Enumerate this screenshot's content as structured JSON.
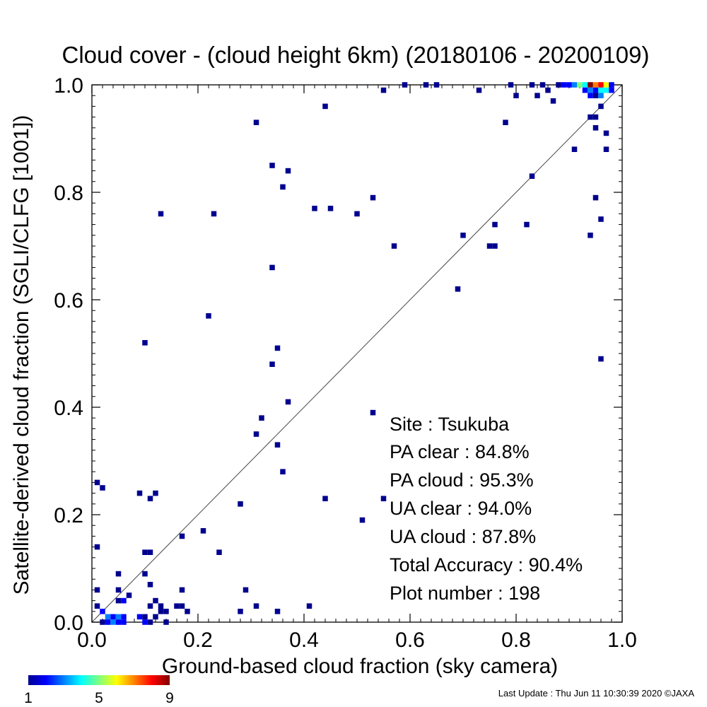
{
  "chart_data": {
    "type": "heatmap",
    "title": "Cloud cover - (cloud height 6km)  (20180106 - 20200109)",
    "xlabel": "Ground-based cloud fraction (sky camera)",
    "ylabel": "Satellite-derived cloud fraction (SGLI/CLFG [1001])",
    "xlim": [
      0.0,
      1.0
    ],
    "ylim": [
      0.0,
      1.0
    ],
    "xticks": [
      "0.0",
      "0.2",
      "0.4",
      "0.6",
      "0.8",
      "1.0"
    ],
    "yticks": [
      "0.0",
      "0.2",
      "0.4",
      "0.6",
      "0.8",
      "1.0"
    ],
    "reference_line": "1:1 diagonal",
    "grid": false,
    "colorbar": {
      "min": 1,
      "max": 9,
      "ticks": [
        "1",
        "5",
        "9"
      ],
      "placement": "bottom-left"
    },
    "cells": [
      [
        0.01,
        0.26,
        1
      ],
      [
        0.02,
        0.25,
        1
      ],
      [
        0.01,
        0.14,
        1
      ],
      [
        0.01,
        0.06,
        1
      ],
      [
        0.01,
        0.03,
        1
      ],
      [
        0.02,
        0.02,
        2
      ],
      [
        0.03,
        0.01,
        3
      ],
      [
        0.04,
        0.01,
        2
      ],
      [
        0.05,
        0.01,
        3
      ],
      [
        0.06,
        0.01,
        2
      ],
      [
        0.03,
        0.0,
        2
      ],
      [
        0.04,
        0.0,
        3
      ],
      [
        0.05,
        0.0,
        2
      ],
      [
        0.06,
        0.0,
        2
      ],
      [
        0.02,
        0.0,
        1
      ],
      [
        0.05,
        0.09,
        1
      ],
      [
        0.05,
        0.06,
        1
      ],
      [
        0.05,
        0.04,
        1
      ],
      [
        0.06,
        0.04,
        2
      ],
      [
        0.07,
        0.05,
        1
      ],
      [
        0.09,
        0.24,
        1
      ],
      [
        0.1,
        0.52,
        1
      ],
      [
        0.1,
        0.13,
        1
      ],
      [
        0.11,
        0.13,
        1
      ],
      [
        0.1,
        0.09,
        1
      ],
      [
        0.11,
        0.23,
        1
      ],
      [
        0.12,
        0.24,
        1
      ],
      [
        0.11,
        0.07,
        1
      ],
      [
        0.11,
        0.03,
        1
      ],
      [
        0.12,
        0.04,
        1
      ],
      [
        0.09,
        0.01,
        2
      ],
      [
        0.1,
        0.01,
        1
      ],
      [
        0.1,
        0.0,
        2
      ],
      [
        0.11,
        0.0,
        1
      ],
      [
        0.12,
        0.01,
        1
      ],
      [
        0.13,
        0.02,
        1
      ],
      [
        0.14,
        0.02,
        1
      ],
      [
        0.14,
        0.0,
        1
      ],
      [
        0.13,
        0.03,
        1
      ],
      [
        0.13,
        0.76,
        1
      ],
      [
        0.17,
        0.16,
        1
      ],
      [
        0.17,
        0.06,
        1
      ],
      [
        0.16,
        0.03,
        1
      ],
      [
        0.17,
        0.03,
        1
      ],
      [
        0.18,
        0.02,
        1
      ],
      [
        0.21,
        0.17,
        1
      ],
      [
        0.22,
        0.57,
        1
      ],
      [
        0.23,
        0.76,
        1
      ],
      [
        0.24,
        0.13,
        1
      ],
      [
        0.28,
        0.22,
        1
      ],
      [
        0.28,
        0.02,
        1
      ],
      [
        0.29,
        0.06,
        1
      ],
      [
        0.31,
        0.93,
        1
      ],
      [
        0.31,
        0.35,
        1
      ],
      [
        0.31,
        0.03,
        1
      ],
      [
        0.32,
        0.38,
        1
      ],
      [
        0.34,
        0.85,
        1
      ],
      [
        0.34,
        0.66,
        1
      ],
      [
        0.34,
        0.48,
        1
      ],
      [
        0.35,
        0.51,
        1
      ],
      [
        0.35,
        0.33,
        1
      ],
      [
        0.35,
        0.02,
        1
      ],
      [
        0.36,
        0.81,
        1
      ],
      [
        0.36,
        0.28,
        1
      ],
      [
        0.37,
        0.84,
        1
      ],
      [
        0.37,
        0.41,
        1
      ],
      [
        0.41,
        0.03,
        1
      ],
      [
        0.42,
        0.77,
        1
      ],
      [
        0.44,
        0.96,
        1
      ],
      [
        0.44,
        0.23,
        1
      ],
      [
        0.45,
        0.77,
        1
      ],
      [
        0.5,
        0.76,
        1
      ],
      [
        0.51,
        0.19,
        1
      ],
      [
        0.53,
        0.79,
        1
      ],
      [
        0.53,
        0.39,
        1
      ],
      [
        0.55,
        0.99,
        1
      ],
      [
        0.55,
        0.23,
        1
      ],
      [
        0.57,
        0.7,
        1
      ],
      [
        0.59,
        1.0,
        1
      ],
      [
        0.63,
        1.0,
        1
      ],
      [
        0.65,
        1.0,
        1
      ],
      [
        0.69,
        0.62,
        1
      ],
      [
        0.7,
        0.72,
        1
      ],
      [
        0.73,
        0.99,
        1
      ],
      [
        0.75,
        0.7,
        1
      ],
      [
        0.76,
        0.7,
        1
      ],
      [
        0.76,
        0.74,
        1
      ],
      [
        0.78,
        0.93,
        1
      ],
      [
        0.79,
        1.0,
        1
      ],
      [
        0.8,
        0.98,
        1
      ],
      [
        0.82,
        0.74,
        1
      ],
      [
        0.83,
        0.83,
        1
      ],
      [
        0.83,
        1.0,
        1
      ],
      [
        0.84,
        0.98,
        1
      ],
      [
        0.85,
        1.0,
        1
      ],
      [
        0.86,
        0.99,
        1
      ],
      [
        0.87,
        0.97,
        1
      ],
      [
        0.88,
        1.0,
        1
      ],
      [
        0.89,
        1.0,
        2
      ],
      [
        0.9,
        1.0,
        2
      ],
      [
        0.91,
        0.88,
        1
      ],
      [
        0.91,
        1.0,
        3
      ],
      [
        0.92,
        1.0,
        5
      ],
      [
        0.93,
        1.0,
        4
      ],
      [
        0.94,
        1.0,
        9
      ],
      [
        0.95,
        1.0,
        7
      ],
      [
        0.96,
        1.0,
        8
      ],
      [
        0.97,
        1.0,
        6
      ],
      [
        0.98,
        1.0,
        2
      ],
      [
        0.93,
        0.99,
        2
      ],
      [
        0.94,
        0.99,
        3
      ],
      [
        0.95,
        0.99,
        2
      ],
      [
        0.96,
        0.99,
        4
      ],
      [
        0.97,
        0.99,
        4
      ],
      [
        0.98,
        0.99,
        2
      ],
      [
        0.94,
        0.98,
        2
      ],
      [
        0.95,
        0.98,
        1
      ],
      [
        0.96,
        0.98,
        3
      ],
      [
        0.94,
        0.94,
        1
      ],
      [
        0.95,
        0.94,
        1
      ],
      [
        0.95,
        0.92,
        1
      ],
      [
        0.96,
        0.96,
        1
      ],
      [
        0.97,
        0.91,
        1
      ],
      [
        0.97,
        0.88,
        1
      ],
      [
        0.94,
        0.72,
        1
      ],
      [
        0.95,
        0.79,
        1
      ],
      [
        0.96,
        0.75,
        1
      ],
      [
        0.96,
        0.49,
        1
      ]
    ]
  },
  "stats": {
    "site": "Site : Tsukuba",
    "pa_clear": "PA clear :  84.8%",
    "pa_cloud": "PA cloud :  95.3%",
    "ua_clear": "UA clear :  94.0%",
    "ua_cloud": "UA cloud :  87.8%",
    "total_accuracy": "Total Accuracy :  90.4%",
    "plot_number": "Plot number :       198"
  },
  "footer": {
    "last_update": "Last Update : Thu Jun 11 10:30:39 2020  ©JAXA"
  }
}
